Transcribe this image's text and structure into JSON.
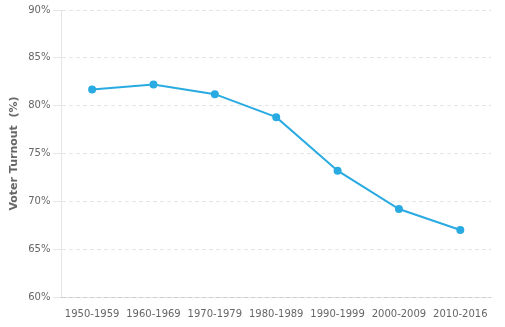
{
  "chart_data": {
    "type": "line",
    "ylabel": "Voter Turnout  (%)",
    "categories": [
      "1950-1959",
      "1960-1969",
      "1970-1979",
      "1980-1989",
      "1990-1999",
      "2000-2009",
      "2010-2016"
    ],
    "values": [
      81.7,
      82.2,
      81.2,
      78.8,
      73.2,
      69.2,
      67.0
    ],
    "color": "#29ABE2",
    "marker": "circle",
    "line_style": "solid",
    "ylim": [
      60,
      90
    ],
    "yticks": [
      {
        "value": 60,
        "label": "60%"
      },
      {
        "value": 65,
        "label": "65%"
      },
      {
        "value": 70,
        "label": "70%"
      },
      {
        "value": 75,
        "label": "75%"
      },
      {
        "value": 80,
        "label": "80%"
      },
      {
        "value": 85,
        "label": "85%"
      },
      {
        "value": 90,
        "label": "90%"
      }
    ],
    "grid": "y"
  }
}
